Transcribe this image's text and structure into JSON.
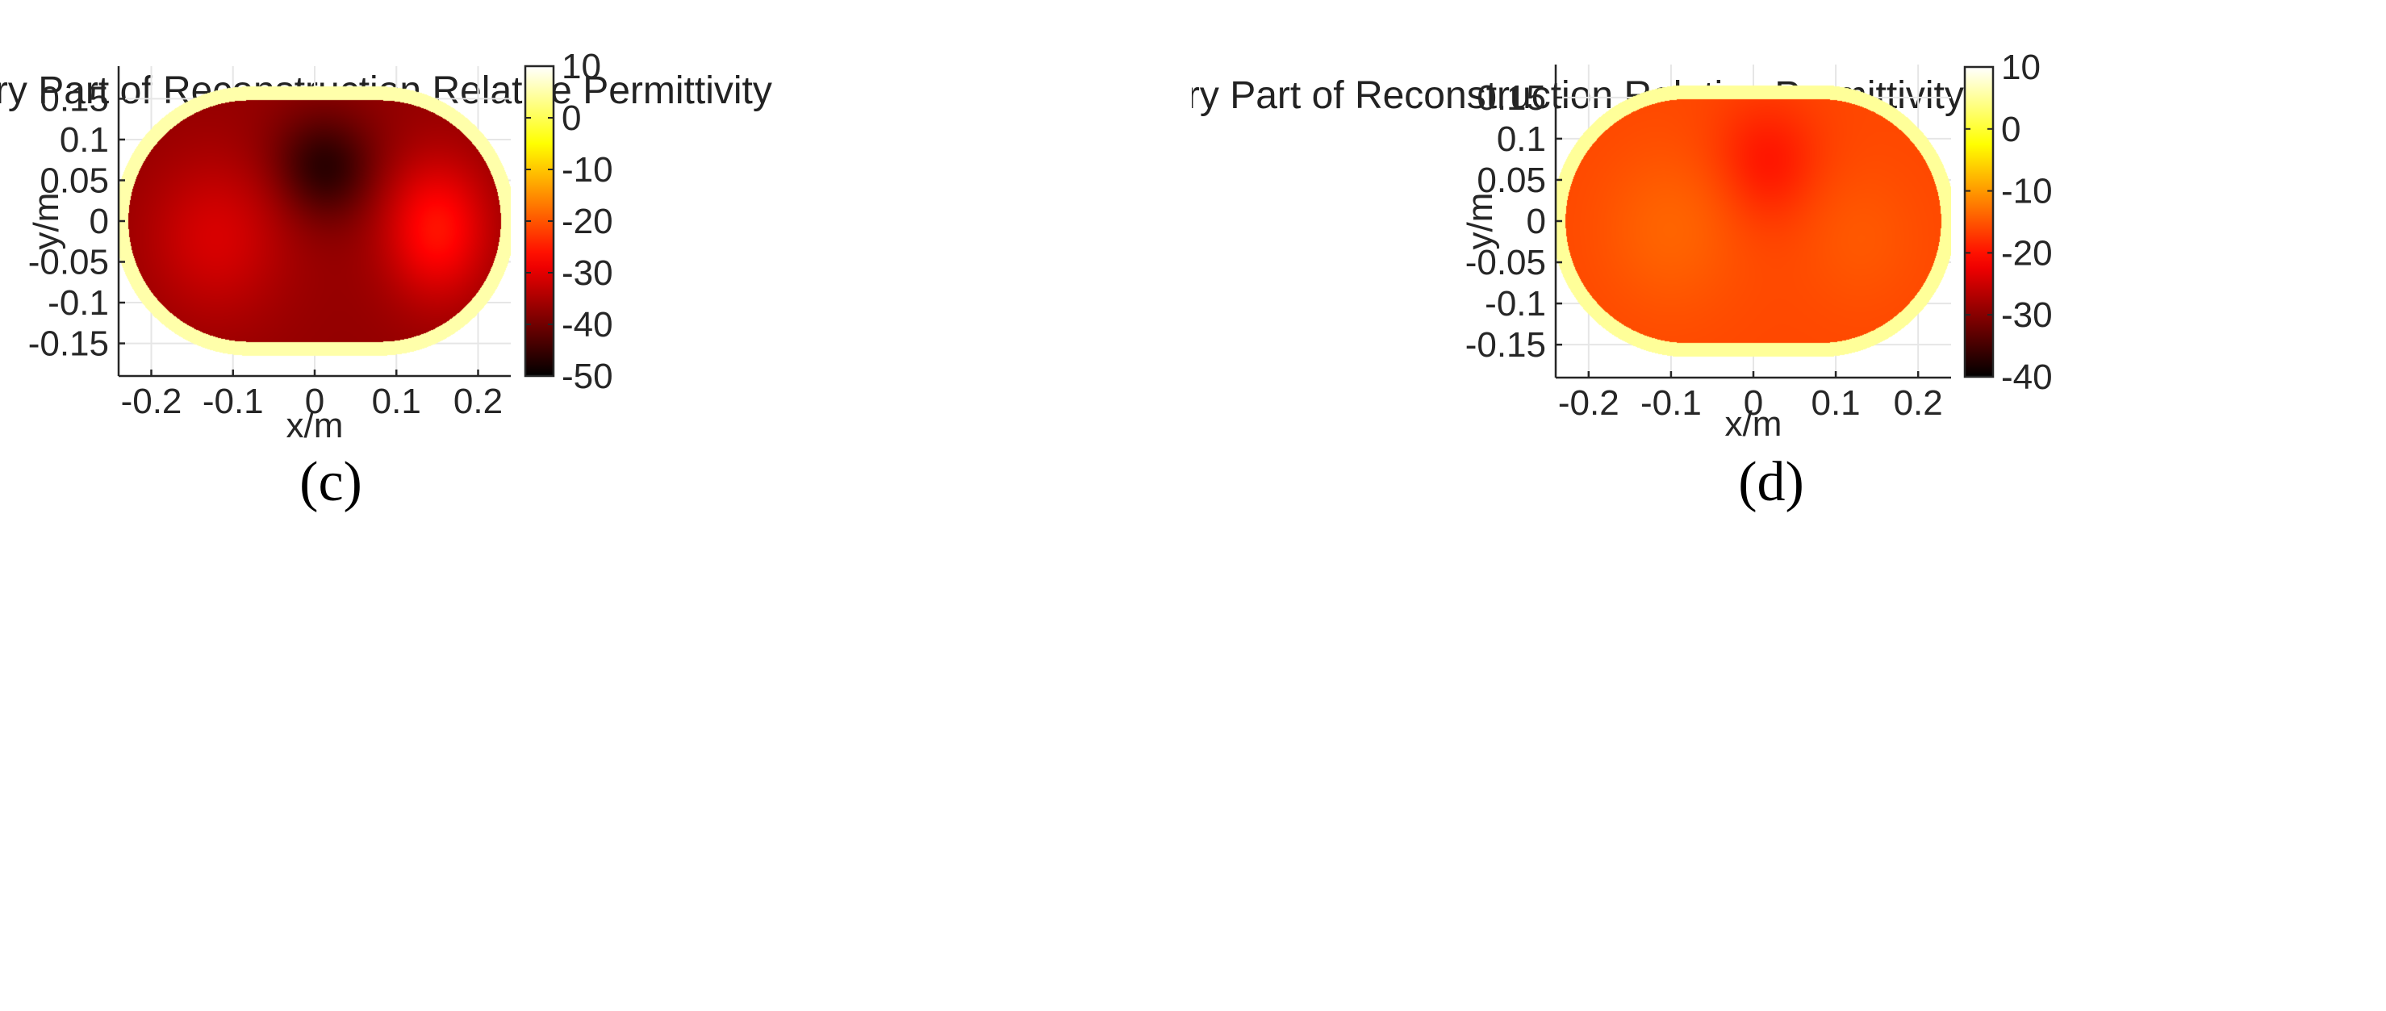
{
  "chart_data": [
    {
      "type": "heatmap",
      "caption": "(c)",
      "title": "Imaginary Part of Reconstruction Relative Permittivity",
      "xlabel": "x/m",
      "ylabel": "y/m",
      "xlim": [
        -0.24,
        0.24
      ],
      "ylim": [
        -0.19,
        0.19
      ],
      "xticks": [
        -0.2,
        -0.1,
        0,
        0.1,
        0.2
      ],
      "xtick_labels": [
        "-0.2",
        "-0.1",
        "0",
        "0.1",
        "0.2"
      ],
      "yticks": [
        0.15,
        0.1,
        0.05,
        0,
        -0.05,
        -0.1,
        -0.15
      ],
      "ytick_labels": [
        "0.15",
        "0.1",
        "0.05",
        "0",
        "-0.05",
        "-0.1",
        "-0.15"
      ],
      "colorbar": {
        "min": -50,
        "max": 10,
        "ticks": [
          10,
          0,
          -10,
          -20,
          -30,
          -40,
          -50
        ],
        "tick_labels": [
          "10",
          "0",
          "-10",
          "-20",
          "-30",
          "-40",
          "-50"
        ],
        "colormap": "hot"
      },
      "grid": true,
      "field": {
        "shape": "stadium",
        "outer": {
          "half_length": 0.08,
          "radius": 0.165,
          "value": 5
        },
        "inner": {
          "half_length": 0.08,
          "radius": 0.148,
          "value": -37
        },
        "blobs": [
          {
            "x": 0.01,
            "y": 0.065,
            "sx": 0.045,
            "sy": 0.045,
            "value": -48,
            "weight": 0.9
          },
          {
            "x": -0.12,
            "y": -0.02,
            "sx": 0.06,
            "sy": 0.07,
            "value": -29,
            "weight": 0.75
          },
          {
            "x": 0.15,
            "y": -0.01,
            "sx": 0.045,
            "sy": 0.06,
            "value": -24,
            "weight": 0.85
          }
        ]
      }
    },
    {
      "type": "heatmap",
      "caption": "(d)",
      "title": "Imaginary Part of Reconstruction Relative Permittivity",
      "xlabel": "x/m",
      "ylabel": "y/m",
      "xlim": [
        -0.24,
        0.24
      ],
      "ylim": [
        -0.19,
        0.19
      ],
      "xticks": [
        -0.2,
        -0.1,
        0,
        0.1,
        0.2
      ],
      "xtick_labels": [
        "-0.2",
        "-0.1",
        "0",
        "0.1",
        "0.2"
      ],
      "yticks": [
        0.15,
        0.1,
        0.05,
        0,
        -0.05,
        -0.1,
        -0.15
      ],
      "ytick_labels": [
        "0.15",
        "0.1",
        "0.05",
        "0",
        "-0.05",
        "-0.1",
        "-0.15"
      ],
      "colorbar": {
        "min": -40,
        "max": 10,
        "ticks": [
          10,
          0,
          -10,
          -20,
          -30,
          -40
        ],
        "tick_labels": [
          "10",
          "0",
          "-10",
          "-20",
          "-30",
          "-40"
        ],
        "colormap": "hot"
      },
      "grid": true,
      "field": {
        "shape": "stadium",
        "outer": {
          "half_length": 0.08,
          "radius": 0.165,
          "value": 5
        },
        "inner": {
          "half_length": 0.08,
          "radius": 0.148,
          "value": -16
        },
        "blobs": [
          {
            "x": 0.015,
            "y": 0.07,
            "sx": 0.045,
            "sy": 0.05,
            "value": -21,
            "weight": 0.8
          },
          {
            "x": -0.1,
            "y": -0.01,
            "sx": 0.06,
            "sy": 0.07,
            "value": -13,
            "weight": 0.7
          },
          {
            "x": 0.13,
            "y": -0.02,
            "sx": 0.05,
            "sy": 0.06,
            "value": -14,
            "weight": 0.6
          }
        ]
      }
    }
  ]
}
